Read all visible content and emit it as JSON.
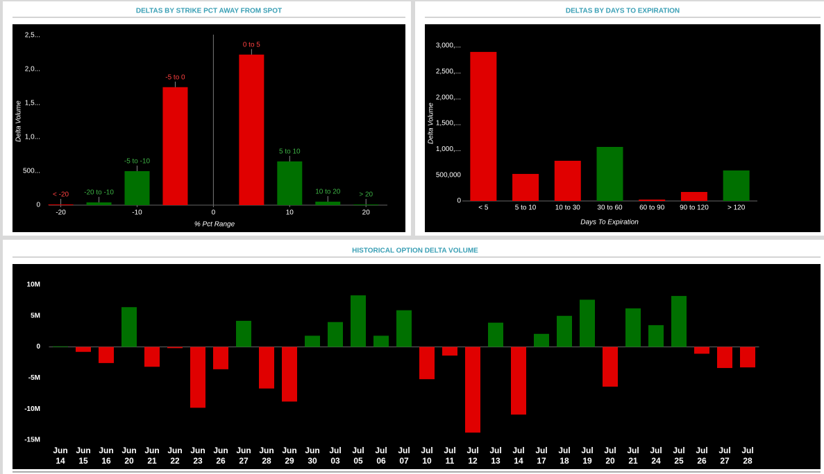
{
  "chart_data": [
    {
      "type": "bar",
      "title": "DELTAS BY STRIKE PCT AWAY FROM SPOT",
      "x_label": "% Pct Range",
      "y_label": "Delta Volume",
      "categories": [
        "< -20",
        "-20 to -10",
        "-5 to -10",
        "-5 to 0",
        "0 to 5",
        "5 to 10",
        "10 to 20",
        "> 20"
      ],
      "x": [
        -20,
        -15,
        -10,
        -5,
        5,
        10,
        15,
        20
      ],
      "values": [
        10000,
        40000,
        500000,
        1735000,
        2214000,
        643000,
        51000,
        10000
      ],
      "colors": [
        "#e00000",
        "#007000",
        "#007000",
        "#e00000",
        "#e00000",
        "#007000",
        "#007000",
        "#007000"
      ],
      "xlim": [
        -21.6,
        22.8
      ],
      "xticks": [
        -20,
        -10,
        0,
        10,
        20
      ],
      "ylim": [
        0,
        2650000
      ],
      "yticks": [
        0,
        {
          "value": 500000,
          "label": "500..."
        },
        {
          "value": 1000000,
          "label": "1,0..."
        },
        {
          "value": 1500000,
          "label": "1,5..."
        },
        {
          "value": 2000000,
          "label": "2,0..."
        },
        {
          "value": 2500000,
          "label": "2,5..."
        }
      ]
    },
    {
      "type": "bar",
      "title": "DELTAS BY DAYS TO EXPIRATION",
      "x_label": "Days To Expiration",
      "y_label": "Delta Volume",
      "categories": [
        "< 5",
        "5 to 10",
        "10 to 30",
        "30 to 60",
        "60 to 90",
        "90 to 120",
        "> 120"
      ],
      "values": [
        2882000,
        523000,
        777000,
        1045000,
        27000,
        174000,
        590000
      ],
      "colors": [
        "#e00000",
        "#e00000",
        "#e00000",
        "#007000",
        "#e00000",
        "#e00000",
        "#007000"
      ],
      "ylim": [
        0,
        3390000
      ],
      "yticks": [
        0,
        {
          "value": 500000,
          "label": "500,000"
        },
        {
          "value": 1000000,
          "label": "1,000,..."
        },
        {
          "value": 1500000,
          "label": "1,500,..."
        },
        {
          "value": 2000000,
          "label": "2,000,..."
        },
        {
          "value": 2500000,
          "label": "2,500,..."
        },
        {
          "value": 3000000,
          "label": "3,000,..."
        }
      ]
    },
    {
      "type": "bar",
      "title": "HISTORICAL OPTION DELTA VOLUME",
      "categories": [
        "Jun 14",
        "Jun 15",
        "Jun 16",
        "Jun 20",
        "Jun 21",
        "Jun 22",
        "Jun 23",
        "Jun 26",
        "Jun 27",
        "Jun 28",
        "Jun 29",
        "Jun 30",
        "Jul 03",
        "Jul 05",
        "Jul 06",
        "Jul 07",
        "Jul 10",
        "Jul 11",
        "Jul 12",
        "Jul 13",
        "Jul 14",
        "Jul 17",
        "Jul 18",
        "Jul 19",
        "Jul 20",
        "Jul 21",
        "Jul 24",
        "Jul 25",
        "Jul 26",
        "Jul 27",
        "Jul 28"
      ],
      "values": [
        100000,
        -800000,
        -2600000,
        6400000,
        -3200000,
        -200000,
        -9800000,
        -3600000,
        4200000,
        -6700000,
        -8800000,
        1800000,
        4000000,
        8300000,
        1800000,
        5900000,
        -5200000,
        -1400000,
        -13800000,
        3900000,
        -10900000,
        2100000,
        5000000,
        7600000,
        -6400000,
        6200000,
        3500000,
        8200000,
        -1100000,
        -3400000,
        -3300000
      ],
      "positive_color": "#007000",
      "negative_color": "#e00000",
      "ylim": [
        -15500000,
        11000000
      ],
      "yticks": [
        {
          "value": -15000000,
          "label": "-15M"
        },
        {
          "value": -10000000,
          "label": "-10M"
        },
        {
          "value": -5000000,
          "label": "-5M"
        },
        0,
        {
          "value": 5000000,
          "label": "5M"
        },
        {
          "value": 10000000,
          "label": "10M"
        }
      ]
    }
  ]
}
